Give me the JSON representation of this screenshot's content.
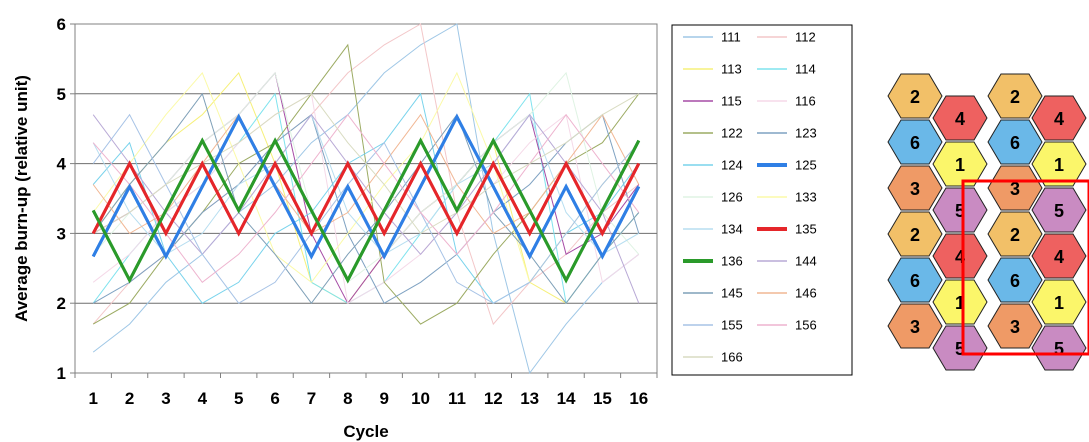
{
  "chart_data": [
    {
      "type": "line",
      "xlabel": "Cycle",
      "ylabel": "Average burn-up (relative unit)",
      "x": [
        1,
        2,
        3,
        4,
        5,
        6,
        7,
        8,
        9,
        10,
        11,
        12,
        13,
        14,
        15,
        16
      ],
      "xticks": [
        "1",
        "2",
        "3",
        "4",
        "5",
        "6",
        "7",
        "8",
        "9",
        "10",
        "11",
        "12",
        "13",
        "14",
        "15",
        "16"
      ],
      "ylim": [
        1,
        6
      ],
      "yticks": [
        "1",
        "2",
        "3",
        "4",
        "5",
        "6"
      ],
      "grid": "horizontal",
      "legend_position": "right",
      "series": [
        {
          "name": "111",
          "color": "#9fc7e6",
          "width": 1,
          "values": [
            1.3,
            1.7,
            2.3,
            2.7,
            3.3,
            3.7,
            4.3,
            4.7,
            5.3,
            5.7,
            6.0,
            3.0,
            1.0,
            1.7,
            2.3,
            2.7
          ]
        },
        {
          "name": "112",
          "color": "#f3c7c9",
          "width": 1,
          "values": [
            1.7,
            2.3,
            2.7,
            3.3,
            3.7,
            4.3,
            4.7,
            5.3,
            5.7,
            6.0,
            3.3,
            1.7,
            2.3,
            2.7,
            3.3,
            3.7
          ]
        },
        {
          "name": "113",
          "color": "#f6f07a",
          "width": 1,
          "values": [
            3.0,
            3.7,
            4.3,
            4.7,
            5.3,
            4.0,
            2.3,
            2.0,
            2.7,
            3.3,
            3.7,
            4.3,
            2.3,
            2.0,
            2.7,
            3.3
          ]
        },
        {
          "name": "114",
          "color": "#7fe3ee",
          "width": 1,
          "values": [
            2.0,
            2.7,
            3.3,
            3.7,
            4.3,
            5.0,
            2.3,
            2.0,
            2.3,
            3.0,
            3.7,
            4.3,
            5.0,
            2.0,
            2.7,
            3.3
          ]
        },
        {
          "name": "115",
          "color": "#a64ca6",
          "width": 1,
          "values": [
            3.0,
            3.3,
            3.7,
            4.3,
            4.7,
            5.3,
            3.0,
            2.0,
            2.7,
            3.3,
            3.7,
            4.3,
            4.7,
            2.7,
            3.0,
            3.7
          ]
        },
        {
          "name": "116",
          "color": "#f5d9e8",
          "width": 1,
          "values": [
            2.3,
            2.7,
            3.3,
            3.7,
            4.3,
            4.7,
            5.0,
            2.0,
            2.3,
            2.7,
            3.3,
            3.7,
            4.3,
            4.7,
            2.3,
            2.7
          ]
        },
        {
          "name": "122",
          "color": "#9cab63",
          "width": 1,
          "values": [
            1.7,
            2.0,
            2.7,
            3.3,
            4.0,
            4.3,
            5.0,
            5.7,
            2.3,
            1.7,
            2.0,
            2.7,
            3.3,
            4.0,
            4.3,
            5.0
          ]
        },
        {
          "name": "123",
          "color": "#7fa2c2",
          "width": 1,
          "values": [
            2.0,
            2.3,
            2.7,
            3.3,
            3.7,
            4.3,
            4.7,
            3.0,
            2.0,
            2.3,
            2.7,
            3.3,
            3.7,
            4.3,
            4.7,
            3.0
          ]
        },
        {
          "name": "124",
          "color": "#79d3ec",
          "width": 1,
          "values": [
            3.7,
            4.3,
            2.7,
            2.0,
            2.3,
            3.0,
            3.3,
            4.0,
            4.3,
            5.0,
            2.7,
            2.0,
            2.3,
            3.0,
            3.3,
            4.0
          ]
        },
        {
          "name": "125",
          "color": "#2f7fe5",
          "width": 3,
          "values": [
            2.67,
            3.67,
            2.67,
            3.67,
            4.67,
            3.67,
            2.67,
            3.67,
            2.67,
            3.67,
            4.67,
            3.67,
            2.67,
            3.67,
            2.67,
            3.67
          ]
        },
        {
          "name": "126",
          "color": "#dff3e3",
          "width": 1,
          "values": [
            2.7,
            3.3,
            3.7,
            4.3,
            4.7,
            5.3,
            3.3,
            2.3,
            2.7,
            3.3,
            3.7,
            4.3,
            4.7,
            5.3,
            3.3,
            2.7
          ]
        },
        {
          "name": "133",
          "color": "#fbfaa8",
          "width": 1,
          "values": [
            3.3,
            4.0,
            4.7,
            5.3,
            4.0,
            2.7,
            2.3,
            3.0,
            3.7,
            4.3,
            5.3,
            4.0,
            2.3,
            3.0,
            3.7,
            4.3
          ]
        },
        {
          "name": "134",
          "color": "#b7def0",
          "width": 1,
          "values": [
            4.3,
            3.3,
            2.7,
            3.0,
            3.7,
            4.0,
            4.7,
            3.3,
            2.7,
            3.0,
            3.7,
            4.0,
            4.7,
            3.3,
            2.7,
            3.0
          ]
        },
        {
          "name": "135",
          "color": "#e5262a",
          "width": 3,
          "values": [
            3,
            4,
            3,
            4,
            3,
            4,
            3,
            4,
            3,
            4,
            3,
            4,
            3,
            4,
            3,
            4
          ]
        },
        {
          "name": "136",
          "color": "#2a9a2a",
          "width": 3,
          "values": [
            3.33,
            2.33,
            3.33,
            4.33,
            3.33,
            4.33,
            3.33,
            2.33,
            3.33,
            4.33,
            3.33,
            4.33,
            3.33,
            2.33,
            3.33,
            4.33
          ]
        },
        {
          "name": "144",
          "color": "#b9aad6",
          "width": 1,
          "values": [
            4.7,
            4.0,
            3.3,
            2.7,
            3.3,
            4.0,
            4.7,
            4.0,
            3.3,
            2.7,
            3.3,
            4.0,
            4.7,
            4.0,
            3.3,
            2.0
          ]
        },
        {
          "name": "145",
          "color": "#7fa0b8",
          "width": 1,
          "values": [
            3.0,
            3.7,
            4.3,
            5.0,
            3.3,
            2.7,
            2.0,
            2.7,
            3.3,
            4.0,
            4.7,
            3.3,
            2.7,
            2.0,
            2.7,
            3.3
          ]
        },
        {
          "name": "146",
          "color": "#f1b794",
          "width": 1,
          "values": [
            3.7,
            3.0,
            3.3,
            4.0,
            4.7,
            3.7,
            3.0,
            3.3,
            4.0,
            4.7,
            3.7,
            3.0,
            3.3,
            4.0,
            4.7,
            3.7
          ]
        },
        {
          "name": "155",
          "color": "#a7c3e6",
          "width": 1,
          "values": [
            4.0,
            4.7,
            3.7,
            2.7,
            2.0,
            2.3,
            3.0,
            3.7,
            4.3,
            3.3,
            2.3,
            2.0,
            2.3,
            3.0,
            3.7,
            4.3
          ]
        },
        {
          "name": "156",
          "color": "#eeb4cf",
          "width": 1,
          "values": [
            4.3,
            3.7,
            3.0,
            2.3,
            2.7,
            3.3,
            4.0,
            4.7,
            4.0,
            3.3,
            2.7,
            3.3,
            4.0,
            4.7,
            4.0,
            3.3
          ]
        },
        {
          "name": "166",
          "color": "#d9dcc2",
          "width": 1,
          "values": [
            3.0,
            3.3,
            3.7,
            4.0,
            4.3,
            4.7,
            5.0,
            4.3,
            3.7,
            3.0,
            3.3,
            3.7,
            4.0,
            4.3,
            4.7,
            5.0
          ]
        }
      ]
    },
    {
      "type": "diagram",
      "hex_grid": {
        "selection_color": "#ff0000",
        "cells": [
          {
            "label": "2",
            "color": "#f2c068"
          },
          {
            "label": "2",
            "color": "#f2c068"
          },
          {
            "label": "4",
            "color": "#ee6160"
          },
          {
            "label": "4",
            "color": "#ee6160"
          },
          {
            "label": "6",
            "color": "#6ab8e8"
          },
          {
            "label": "6",
            "color": "#6ab8e8"
          },
          {
            "label": "1",
            "color": "#fbf66a"
          },
          {
            "label": "1",
            "color": "#fbf66a"
          },
          {
            "label": "3",
            "color": "#ef9a66"
          },
          {
            "label": "3",
            "color": "#ef9a66"
          },
          {
            "label": "5",
            "color": "#c98bc2"
          },
          {
            "label": "5",
            "color": "#c98bc2"
          },
          {
            "label": "2",
            "color": "#f2c068"
          },
          {
            "label": "2",
            "color": "#f2c068"
          },
          {
            "label": "4",
            "color": "#ee6160"
          },
          {
            "label": "4",
            "color": "#ee6160"
          },
          {
            "label": "6",
            "color": "#6ab8e8"
          },
          {
            "label": "6",
            "color": "#6ab8e8"
          },
          {
            "label": "1",
            "color": "#fbf66a"
          },
          {
            "label": "1",
            "color": "#fbf66a"
          },
          {
            "label": "3",
            "color": "#ef9a66"
          },
          {
            "label": "3",
            "color": "#ef9a66"
          },
          {
            "label": "5",
            "color": "#c98bc2"
          },
          {
            "label": "5",
            "color": "#c98bc2"
          }
        ]
      }
    }
  ]
}
